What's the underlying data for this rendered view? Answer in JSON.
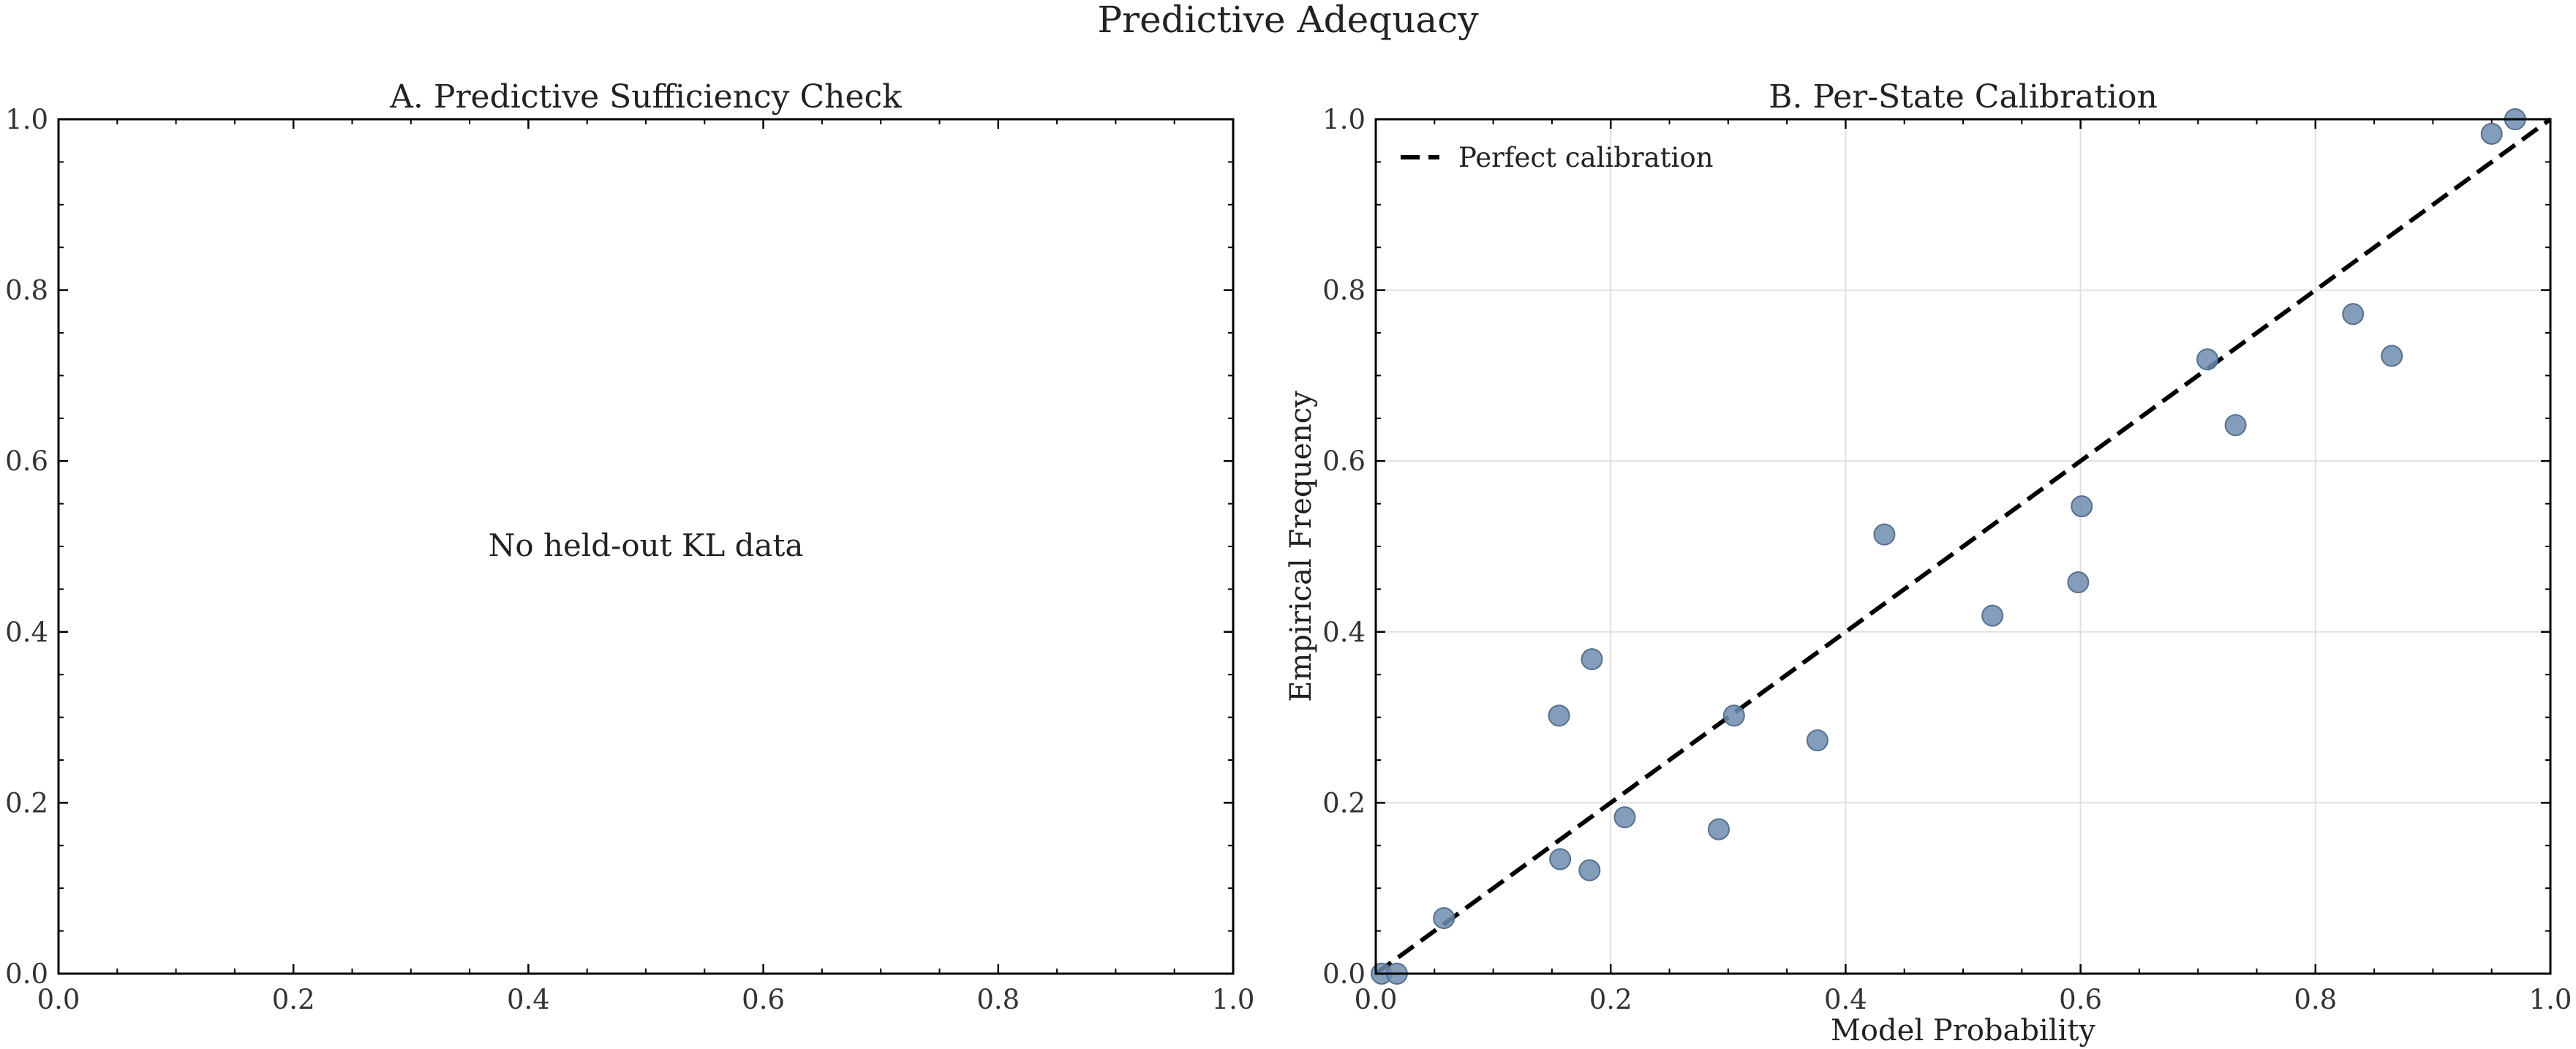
{
  "figure": {
    "title": "Predictive Adequacy",
    "colors": {
      "point": "#6f8cae",
      "point_edge": "#56708f",
      "line": "#000000",
      "grid": "#e0e0e0"
    }
  },
  "chart_data": [
    {
      "type": "scatter",
      "title": "A. Predictive Sufficiency Check",
      "xlabel": "",
      "ylabel": "",
      "xlim": [
        0,
        1
      ],
      "ylim": [
        0,
        1
      ],
      "xticks": [
        "0.0",
        "0.2",
        "0.4",
        "0.6",
        "0.8",
        "1.0"
      ],
      "yticks": [
        "0.0",
        "0.2",
        "0.4",
        "0.6",
        "0.8",
        "1.0"
      ],
      "grid": false,
      "annotation": "No held-out KL data",
      "series": []
    },
    {
      "type": "scatter",
      "title": "B. Per-State Calibration",
      "xlabel": "Model Probability",
      "ylabel": "Empirical Frequency",
      "xlim": [
        0,
        1
      ],
      "ylim": [
        0,
        1
      ],
      "xticks": [
        "0.0",
        "0.2",
        "0.4",
        "0.6",
        "0.8",
        "1.0"
      ],
      "yticks": [
        "0.0",
        "0.2",
        "0.4",
        "0.6",
        "0.8",
        "1.0"
      ],
      "grid": true,
      "legend": {
        "placement": "top-left",
        "entries": [
          "Perfect calibration"
        ]
      },
      "reference_line": {
        "label": "Perfect calibration",
        "x": [
          0,
          1
        ],
        "y": [
          0,
          1
        ],
        "style": "dashed"
      },
      "points": [
        {
          "x": 0.005,
          "y": 0.0
        },
        {
          "x": 0.018,
          "y": 0.0
        },
        {
          "x": 0.058,
          "y": 0.065
        },
        {
          "x": 0.156,
          "y": 0.302
        },
        {
          "x": 0.157,
          "y": 0.134
        },
        {
          "x": 0.182,
          "y": 0.121
        },
        {
          "x": 0.184,
          "y": 0.368
        },
        {
          "x": 0.212,
          "y": 0.183
        },
        {
          "x": 0.292,
          "y": 0.169
        },
        {
          "x": 0.305,
          "y": 0.302
        },
        {
          "x": 0.376,
          "y": 0.273
        },
        {
          "x": 0.433,
          "y": 0.514
        },
        {
          "x": 0.525,
          "y": 0.419
        },
        {
          "x": 0.598,
          "y": 0.458
        },
        {
          "x": 0.601,
          "y": 0.547
        },
        {
          "x": 0.708,
          "y": 0.719
        },
        {
          "x": 0.732,
          "y": 0.642
        },
        {
          "x": 0.832,
          "y": 0.772
        },
        {
          "x": 0.865,
          "y": 0.723
        },
        {
          "x": 0.95,
          "y": 0.983
        },
        {
          "x": 0.97,
          "y": 1.0
        }
      ]
    }
  ]
}
